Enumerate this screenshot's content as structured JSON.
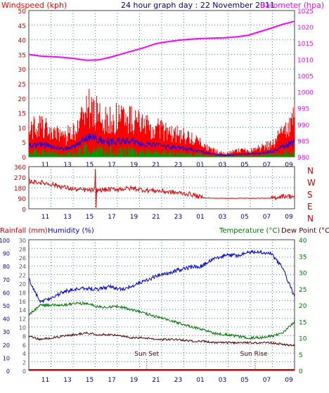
{
  "header": {
    "windspeed_label": "Windspeed (kph)",
    "title": "24 hour graph day : 22 November 2011",
    "barometer_label": "Barometer (hpa)"
  },
  "colors": {
    "wind": "#ff0000",
    "gust_fill": "#ff0000",
    "avg_wind": "#0000ff",
    "green": "#009900",
    "barometer": "#ff00ff",
    "direction": "#dd0000",
    "rain": "#cc0000",
    "humidity": "#0000dd",
    "temperature": "#007700",
    "dewpoint": "#550000",
    "grid": "#3a8a8a",
    "axis_left": "#cc0000",
    "axis_mid": "#555555",
    "axis_right": "#007700",
    "time_label": "#000080"
  },
  "panel1": {
    "left_ticks": [
      "0",
      "5",
      "10",
      "15",
      "20",
      "25",
      "30",
      "35",
      "40",
      "45",
      "50"
    ],
    "right_ticks": [
      "980",
      "985",
      "990",
      "995",
      "1000",
      "1005",
      "1010",
      "1015",
      "1020",
      "1025"
    ],
    "time_ticks": [
      "11",
      "13",
      "15",
      "17",
      "19",
      "21",
      "23",
      "01",
      "03",
      "05",
      "07",
      "09"
    ]
  },
  "panel2": {
    "left_ticks": [
      "0",
      "90",
      "180",
      "270",
      "360"
    ],
    "compass": [
      "N",
      "W",
      "S",
      "E",
      "N"
    ],
    "time_ticks": [
      "11",
      "13",
      "15",
      "17",
      "19",
      "21",
      "23",
      "01",
      "03",
      "05",
      "07",
      "09"
    ]
  },
  "panel3": {
    "rain_label": "Rainfall (mm)",
    "humidity_label": "Humidity (%)",
    "temperature_label": "Temperature (°C)",
    "dewpoint_label": "Dew Point (°C)",
    "humidity_ticks": [
      "0",
      "10",
      "20",
      "30",
      "40",
      "50",
      "60",
      "70",
      "80",
      "90",
      "100"
    ],
    "rain_ticks": [
      "0",
      "2",
      "4",
      "6",
      "8",
      "10",
      "12",
      "14",
      "16",
      "18",
      "20",
      "22",
      "24",
      "26",
      "28",
      "30"
    ],
    "temp_ticks": [
      "0",
      "5",
      "10",
      "15",
      "20",
      "25",
      "30",
      "35",
      "40"
    ],
    "time_ticks": [
      "11",
      "13",
      "15",
      "17",
      "19",
      "21",
      "23",
      "01",
      "03",
      "05",
      "07",
      "09"
    ],
    "sunset_label": "Sun Set",
    "sunrise_label": "Sun Rise"
  },
  "chart_data": [
    {
      "type": "line",
      "title": "24 hour graph day : 22 November 2011",
      "xlabel": "",
      "ylabel": "Windspeed (kph)",
      "ylim": [
        0,
        50
      ],
      "y2label": "Barometer (hpa)",
      "y2lim": [
        980,
        1025
      ],
      "x": [
        "10",
        "11",
        "12",
        "13",
        "14",
        "15",
        "16",
        "17",
        "18",
        "19",
        "20",
        "21",
        "22",
        "23",
        "00",
        "01",
        "02",
        "03",
        "04",
        "05",
        "06",
        "07",
        "08",
        "09"
      ],
      "series": [
        {
          "name": "Windspeed (kph)",
          "axis": "left",
          "values": [
            9,
            10,
            8,
            6,
            9,
            16,
            14,
            12,
            13,
            12,
            10,
            9,
            8,
            7,
            6,
            4,
            2,
            1,
            2,
            2,
            3,
            4,
            8,
            12
          ]
        },
        {
          "name": "Barometer (hpa)",
          "axis": "right",
          "values": [
            1011.5,
            1011.0,
            1010.8,
            1010.6,
            1010.2,
            1009.7,
            1009.8,
            1010.6,
            1011.6,
            1012.6,
            1013.6,
            1014.8,
            1015.4,
            1015.9,
            1016.2,
            1016.4,
            1016.5,
            1016.6,
            1016.9,
            1017.4,
            1018.5,
            1019.6,
            1020.8,
            1021.7
          ]
        }
      ]
    },
    {
      "type": "line",
      "xlabel": "",
      "ylabel": "",
      "ylim": [
        0,
        360
      ],
      "x": [
        "10",
        "11",
        "12",
        "13",
        "14",
        "15",
        "16",
        "17",
        "18",
        "19",
        "20",
        "21",
        "22",
        "23",
        "00",
        "01",
        "02",
        "03",
        "04",
        "05",
        "06",
        "07",
        "08",
        "09"
      ],
      "series": [
        {
          "values": [
            235,
            225,
            210,
            185,
            165,
            160,
            160,
            165,
            170,
            175,
            160,
            155,
            145,
            135,
            125,
            95,
            90,
            90,
            90,
            90,
            90,
            90,
            110,
            105
          ]
        }
      ]
    },
    {
      "type": "line",
      "xlabel": "",
      "ylabel": "Humidity (%)",
      "ylim": [
        0,
        100
      ],
      "y2label": "Temperature (°C)",
      "y2lim": [
        0,
        40
      ],
      "x": [
        "10",
        "11",
        "12",
        "13",
        "14",
        "15",
        "16",
        "17",
        "18",
        "19",
        "20",
        "21",
        "22",
        "23",
        "00",
        "01",
        "02",
        "03",
        "04",
        "05",
        "06",
        "07",
        "08",
        "09"
      ],
      "series": [
        {
          "name": "Humidity (%)",
          "axis": "left",
          "values": [
            70,
            52,
            56,
            60,
            62,
            63,
            62,
            64,
            62,
            65,
            68,
            72,
            74,
            77,
            79,
            80,
            86,
            88,
            88,
            90,
            91,
            89,
            78,
            56
          ]
        },
        {
          "name": "Temperature (°C)",
          "axis": "right",
          "values": [
            17,
            20,
            20,
            20,
            20.5,
            20.5,
            19.5,
            19.5,
            19.5,
            18.5,
            17.5,
            16.5,
            15.5,
            14.5,
            13.5,
            12.5,
            11.5,
            11,
            10.5,
            10,
            10,
            10.5,
            11.5,
            15
          ]
        },
        {
          "name": "Dew Point (°C)",
          "axis": "right",
          "values": [
            10.5,
            9.5,
            10,
            10.5,
            11,
            11.5,
            11,
            11,
            10.5,
            10,
            10,
            9.5,
            9.5,
            9.5,
            9,
            9,
            8.5,
            8.5,
            8.5,
            8.5,
            8.5,
            8.5,
            8,
            7.5
          ]
        },
        {
          "name": "Rainfall (mm)",
          "axis": "left2",
          "values": [
            0,
            0,
            0,
            0,
            0,
            0,
            0,
            0,
            0,
            0,
            0,
            0,
            0,
            0,
            0,
            0,
            0,
            0,
            0,
            0,
            0,
            0,
            0,
            0
          ]
        }
      ],
      "annotations": [
        "Sun Set",
        "Sun Rise"
      ]
    }
  ]
}
